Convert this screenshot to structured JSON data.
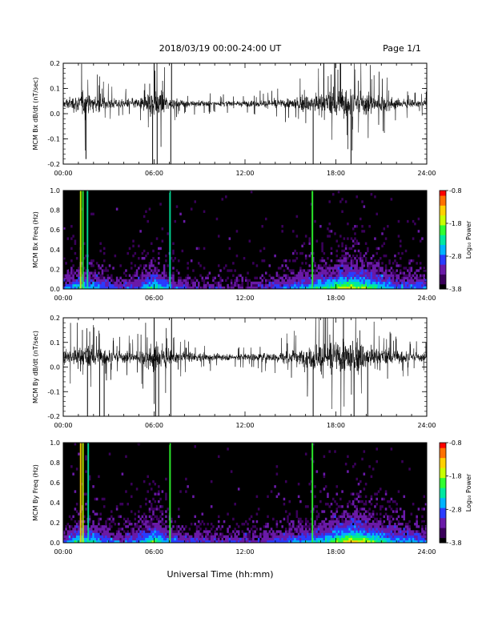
{
  "header": {
    "date_range": "2018/03/19  00:00-24:00 UT",
    "page": "Page 1/1"
  },
  "xlabel": "Universal Time (hh:mm)",
  "colors": {
    "trace": "#000000",
    "background": "#000000",
    "colormap": [
      "#000000",
      "#3a005a",
      "#6a1aa8",
      "#2a3cff",
      "#00b4ff",
      "#00e8a0",
      "#30ff30",
      "#c8ff00",
      "#ffd000",
      "#ff7000",
      "#ff0000"
    ]
  },
  "chart_data": [
    {
      "type": "line",
      "ylabel": "MCM Bx dB/dt (nT/sec)",
      "x_ticks": [
        "00:00",
        "06:00",
        "12:00",
        "18:00",
        "24:00"
      ],
      "y_ticks": [
        "0.2",
        "0.1",
        "0.0",
        "-0.1",
        "-0.2"
      ],
      "xlim_hours": [
        0,
        24
      ],
      "ylim": [
        -0.2,
        0.2
      ],
      "baseline": 0.04,
      "envelope": [
        [
          0,
          0.03
        ],
        [
          1,
          0.05
        ],
        [
          1.4,
          0.08
        ],
        [
          2,
          0.05
        ],
        [
          3,
          0.03
        ],
        [
          4,
          0.025
        ],
        [
          5,
          0.03
        ],
        [
          5.5,
          0.05
        ],
        [
          6,
          0.08
        ],
        [
          6.5,
          0.07
        ],
        [
          7,
          0.03
        ],
        [
          8,
          0.02
        ],
        [
          9,
          0.02
        ],
        [
          10,
          0.015
        ],
        [
          11,
          0.015
        ],
        [
          12,
          0.015
        ],
        [
          13,
          0.02
        ],
        [
          14,
          0.025
        ],
        [
          15,
          0.03
        ],
        [
          16,
          0.045
        ],
        [
          16.5,
          0.06
        ],
        [
          17,
          0.07
        ],
        [
          18,
          0.09
        ],
        [
          19,
          0.08
        ],
        [
          20,
          0.07
        ],
        [
          21,
          0.05
        ],
        [
          22,
          0.03
        ],
        [
          23,
          0.02
        ],
        [
          24,
          0.02
        ]
      ],
      "spikes": [
        [
          1.5,
          -0.18
        ],
        [
          5.9,
          -0.2
        ],
        [
          6.0,
          0.2
        ],
        [
          6.2,
          -0.2
        ],
        [
          7.1,
          -0.2
        ],
        [
          7.15,
          0.2
        ],
        [
          16.5,
          -0.2
        ],
        [
          17.2,
          0.2
        ],
        [
          18.3,
          0.2
        ],
        [
          19.0,
          -0.2
        ]
      ]
    },
    {
      "type": "heatmap",
      "ylabel": "MCM Bx Freq (Hz)",
      "x_ticks": [
        "00:00",
        "06:00",
        "12:00",
        "18:00",
        "24:00"
      ],
      "y_ticks": [
        "1.0",
        "0.8",
        "0.6",
        "0.4",
        "0.2",
        "0.0"
      ],
      "xlim_hours": [
        0,
        24
      ],
      "ylim": [
        0,
        1.0
      ],
      "colorbar": {
        "label": "Log₁₀ Power",
        "ticks": [
          "-0.8",
          "-1.8",
          "-2.8",
          "-3.8"
        ],
        "range": [
          -3.8,
          -0.8
        ]
      },
      "activity": [
        [
          0,
          0.3
        ],
        [
          1,
          0.5
        ],
        [
          2,
          0.45
        ],
        [
          3,
          0.3
        ],
        [
          4,
          0.25
        ],
        [
          5,
          0.35
        ],
        [
          6,
          0.6
        ],
        [
          7,
          0.4
        ],
        [
          8,
          0.25
        ],
        [
          10,
          0.2
        ],
        [
          12,
          0.2
        ],
        [
          14,
          0.3
        ],
        [
          16,
          0.45
        ],
        [
          17,
          0.55
        ],
        [
          18,
          0.7
        ],
        [
          19,
          0.8
        ],
        [
          20,
          0.7
        ],
        [
          21,
          0.5
        ],
        [
          22,
          0.4
        ],
        [
          24,
          0.35
        ]
      ],
      "lines": [
        [
          1.15,
          -1.6
        ],
        [
          1.3,
          -1.9
        ],
        [
          1.6,
          -2.3
        ],
        [
          7.05,
          -2.2
        ],
        [
          16.45,
          -1.9
        ]
      ]
    },
    {
      "type": "line",
      "ylabel": "MCM By dB/dt (nT/sec)",
      "x_ticks": [
        "00:00",
        "06:00",
        "12:00",
        "18:00",
        "24:00"
      ],
      "y_ticks": [
        "0.2",
        "0.1",
        "0.0",
        "-0.1",
        "-0.2"
      ],
      "xlim_hours": [
        0,
        24
      ],
      "ylim": [
        -0.2,
        0.2
      ],
      "baseline": 0.04,
      "envelope": [
        [
          0,
          0.04
        ],
        [
          1,
          0.07
        ],
        [
          1.5,
          0.09
        ],
        [
          2,
          0.06
        ],
        [
          3,
          0.04
        ],
        [
          4,
          0.035
        ],
        [
          5,
          0.04
        ],
        [
          5.5,
          0.06
        ],
        [
          6,
          0.09
        ],
        [
          6.5,
          0.08
        ],
        [
          7,
          0.04
        ],
        [
          8,
          0.03
        ],
        [
          9,
          0.025
        ],
        [
          10,
          0.02
        ],
        [
          11,
          0.02
        ],
        [
          12,
          0.02
        ],
        [
          13,
          0.025
        ],
        [
          14,
          0.03
        ],
        [
          15,
          0.04
        ],
        [
          16,
          0.06
        ],
        [
          16.5,
          0.08
        ],
        [
          17,
          0.09
        ],
        [
          18,
          0.11
        ],
        [
          19,
          0.1
        ],
        [
          20,
          0.08
        ],
        [
          21,
          0.06
        ],
        [
          22,
          0.04
        ],
        [
          23,
          0.03
        ],
        [
          24,
          0.025
        ]
      ],
      "spikes": [
        [
          1.6,
          -0.2
        ],
        [
          2.4,
          -0.2
        ],
        [
          2.7,
          -0.2
        ],
        [
          6.0,
          0.2
        ],
        [
          6.1,
          -0.2
        ],
        [
          6.3,
          -0.2
        ],
        [
          7.1,
          -0.2
        ],
        [
          7.15,
          0.2
        ],
        [
          16.5,
          -0.2
        ],
        [
          17.3,
          0.2
        ],
        [
          18.5,
          0.2
        ],
        [
          19.2,
          -0.2
        ],
        [
          20.1,
          -0.2
        ]
      ]
    },
    {
      "type": "heatmap",
      "ylabel": "MCM By Freq (Hz)",
      "x_ticks": [
        "00:00",
        "06:00",
        "12:00",
        "18:00",
        "24:00"
      ],
      "y_ticks": [
        "1.0",
        "0.8",
        "0.6",
        "0.4",
        "0.2",
        "0.0"
      ],
      "xlim_hours": [
        0,
        24
      ],
      "ylim": [
        0,
        1.0
      ],
      "colorbar": {
        "label": "Log₁₀ Power",
        "ticks": [
          "-0.8",
          "-1.8",
          "-2.8",
          "-3.8"
        ],
        "range": [
          -3.8,
          -0.8
        ]
      },
      "activity": [
        [
          0,
          0.3
        ],
        [
          1,
          0.55
        ],
        [
          2,
          0.5
        ],
        [
          3,
          0.35
        ],
        [
          4,
          0.3
        ],
        [
          5,
          0.4
        ],
        [
          6,
          0.65
        ],
        [
          7,
          0.4
        ],
        [
          8,
          0.3
        ],
        [
          10,
          0.25
        ],
        [
          12,
          0.25
        ],
        [
          14,
          0.3
        ],
        [
          16,
          0.45
        ],
        [
          17,
          0.5
        ],
        [
          18,
          0.7
        ],
        [
          19,
          0.85
        ],
        [
          20,
          0.75
        ],
        [
          21,
          0.55
        ],
        [
          22,
          0.45
        ],
        [
          24,
          0.4
        ]
      ],
      "lines": [
        [
          1.15,
          -1.5
        ],
        [
          1.3,
          -1.8
        ],
        [
          1.65,
          -2.3
        ],
        [
          7.05,
          -2.1
        ],
        [
          16.45,
          -1.9
        ]
      ]
    }
  ]
}
